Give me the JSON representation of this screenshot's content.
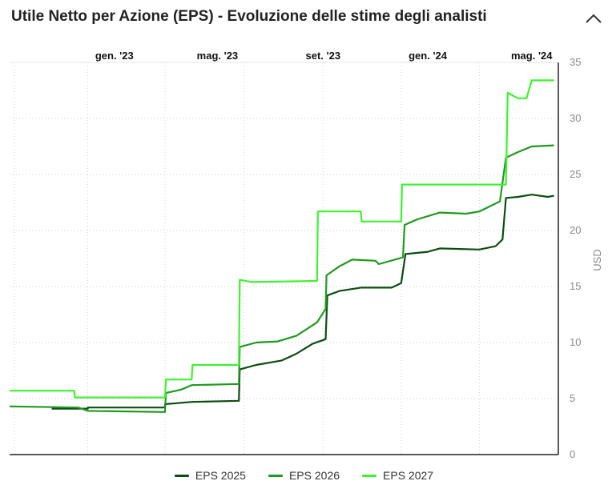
{
  "header": {
    "title": "Utile Netto per Azione (EPS) - Evoluzione delle stime degli analisti",
    "collapse_icon": "chevron-up-icon"
  },
  "chart_data": {
    "type": "line",
    "title": "Utile Netto per Azione (EPS) - Evoluzione delle stime degli analisti",
    "xlabel": "",
    "ylabel": "USD",
    "x_axis_position": "top",
    "y_axis_position": "right",
    "x_ticks": [
      {
        "label": "gen. '23",
        "date": "2023-01-01"
      },
      {
        "label": "mag. '23",
        "date": "2023-05-01"
      },
      {
        "label": "set. '23",
        "date": "2023-09-01"
      },
      {
        "label": "gen. '24",
        "date": "2024-01-01"
      },
      {
        "label": "mag. '24",
        "date": "2024-05-01"
      }
    ],
    "xlim": [
      "2022-09-01",
      "2024-06-01"
    ],
    "ylim": [
      0,
      35
    ],
    "y_ticks": [
      0,
      5,
      10,
      15,
      20,
      25,
      30,
      35
    ],
    "grid": true,
    "legend_position": "bottom",
    "series": [
      {
        "name": "EPS 2025",
        "color": "#0b4d12",
        "points": [
          [
            "2022-10-20",
            4.1
          ],
          [
            "2022-12-01",
            4.1
          ],
          [
            "2022-12-01",
            4.2
          ],
          [
            "2023-03-01",
            4.2
          ],
          [
            "2023-03-01",
            4.5
          ],
          [
            "2023-04-01",
            4.7
          ],
          [
            "2023-05-26",
            4.8
          ],
          [
            "2023-05-27",
            7.6
          ],
          [
            "2023-06-15",
            8.0
          ],
          [
            "2023-07-15",
            8.4
          ],
          [
            "2023-08-01",
            9.0
          ],
          [
            "2023-08-20",
            9.9
          ],
          [
            "2023-09-04",
            10.3
          ],
          [
            "2023-09-06",
            14.2
          ],
          [
            "2023-09-20",
            14.6
          ],
          [
            "2023-10-15",
            14.9
          ],
          [
            "2023-11-20",
            14.9
          ],
          [
            "2023-12-01",
            15.3
          ],
          [
            "2023-12-06",
            17.9
          ],
          [
            "2024-01-01",
            18.1
          ],
          [
            "2024-01-15",
            18.4
          ],
          [
            "2024-03-01",
            18.3
          ],
          [
            "2024-03-20",
            18.6
          ],
          [
            "2024-03-28",
            19.2
          ],
          [
            "2024-04-01",
            22.9
          ],
          [
            "2024-04-15",
            23.0
          ],
          [
            "2024-05-01",
            23.2
          ],
          [
            "2024-05-20",
            23.0
          ],
          [
            "2024-05-27",
            23.1
          ]
        ]
      },
      {
        "name": "EPS 2026",
        "color": "#1e9a1e",
        "points": [
          [
            "2022-09-01",
            4.3
          ],
          [
            "2022-11-20",
            4.2
          ],
          [
            "2022-12-01",
            3.9
          ],
          [
            "2023-03-01",
            3.8
          ],
          [
            "2023-03-02",
            5.5
          ],
          [
            "2023-03-20",
            5.8
          ],
          [
            "2023-04-01",
            6.2
          ],
          [
            "2023-05-26",
            6.3
          ],
          [
            "2023-05-27",
            9.6
          ],
          [
            "2023-06-15",
            10.0
          ],
          [
            "2023-07-10",
            10.1
          ],
          [
            "2023-08-01",
            10.6
          ],
          [
            "2023-08-25",
            11.8
          ],
          [
            "2023-09-04",
            13.0
          ],
          [
            "2023-09-05",
            16.0
          ],
          [
            "2023-09-20",
            16.8
          ],
          [
            "2023-10-05",
            17.4
          ],
          [
            "2023-11-01",
            17.3
          ],
          [
            "2023-11-05",
            17.0
          ],
          [
            "2023-12-03",
            17.6
          ],
          [
            "2023-12-05",
            20.5
          ],
          [
            "2023-12-20",
            21.0
          ],
          [
            "2024-01-15",
            21.6
          ],
          [
            "2024-02-15",
            21.5
          ],
          [
            "2024-03-01",
            21.7
          ],
          [
            "2024-03-25",
            22.6
          ],
          [
            "2024-04-01",
            26.5
          ],
          [
            "2024-04-15",
            27.0
          ],
          [
            "2024-05-01",
            27.5
          ],
          [
            "2024-05-27",
            27.6
          ]
        ]
      },
      {
        "name": "EPS 2027",
        "color": "#3ef22e",
        "points": [
          [
            "2022-09-01",
            5.7
          ],
          [
            "2022-11-15",
            5.7
          ],
          [
            "2022-11-16",
            5.1
          ],
          [
            "2023-03-01",
            5.1
          ],
          [
            "2023-03-02",
            6.7
          ],
          [
            "2023-04-01",
            6.7
          ],
          [
            "2023-04-02",
            8.0
          ],
          [
            "2023-05-26",
            8.0
          ],
          [
            "2023-05-27",
            15.6
          ],
          [
            "2023-06-10",
            15.4
          ],
          [
            "2023-08-25",
            15.5
          ],
          [
            "2023-08-26",
            21.7
          ],
          [
            "2023-10-15",
            21.7
          ],
          [
            "2023-10-16",
            20.8
          ],
          [
            "2023-12-01",
            20.8
          ],
          [
            "2023-12-02",
            24.1
          ],
          [
            "2024-04-01",
            24.1
          ],
          [
            "2024-04-03",
            32.3
          ],
          [
            "2024-04-15",
            31.8
          ],
          [
            "2024-04-25",
            31.8
          ],
          [
            "2024-05-01",
            33.4
          ],
          [
            "2024-05-27",
            33.4
          ]
        ]
      }
    ]
  }
}
